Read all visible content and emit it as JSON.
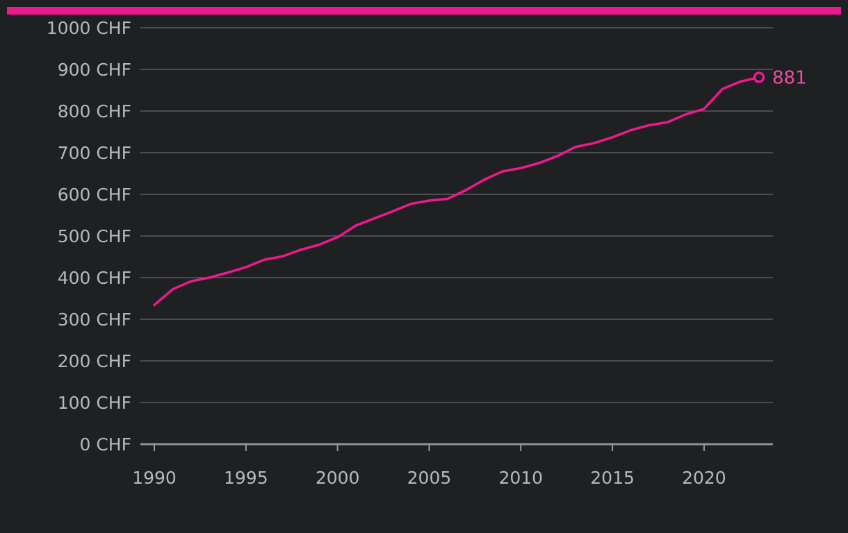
{
  "colors": {
    "background": "#1f2022",
    "accent": "#ed1a8f",
    "end_label": "#f04aa6",
    "grid": "#5b5c5f",
    "axis_text": "#b7b8bb"
  },
  "chart_data": {
    "type": "line",
    "title": "",
    "xlabel": "",
    "ylabel": "",
    "y_unit_suffix": " CHF",
    "ylim": [
      0,
      1000
    ],
    "xlim": [
      1990,
      2023
    ],
    "grid": true,
    "y_ticks": [
      0,
      100,
      200,
      300,
      400,
      500,
      600,
      700,
      800,
      900,
      1000
    ],
    "y_tick_labels": [
      "0 CHF",
      "100 CHF",
      "200 CHF",
      "300 CHF",
      "400 CHF",
      "500 CHF",
      "600 CHF",
      "700 CHF",
      "800 CHF",
      "900 CHF",
      "1000 CHF"
    ],
    "x_ticks": [
      1990,
      1995,
      2000,
      2005,
      2010,
      2015,
      2020
    ],
    "x_tick_labels": [
      "1990",
      "1995",
      "2000",
      "2005",
      "2010",
      "2015",
      "2020"
    ],
    "x": [
      1990,
      1991,
      1992,
      1993,
      1994,
      1995,
      1996,
      1997,
      1998,
      1999,
      2000,
      2001,
      2002,
      2003,
      2004,
      2005,
      2006,
      2007,
      2008,
      2009,
      2010,
      2011,
      2012,
      2013,
      2014,
      2015,
      2016,
      2017,
      2018,
      2019,
      2020,
      2021,
      2022,
      2023
    ],
    "series": [
      {
        "values": [
          334,
          372,
          391,
          400,
          412,
          425,
          443,
          451,
          467,
          479,
          497,
          525,
          542,
          559,
          577,
          585,
          589,
          610,
          635,
          655,
          663,
          675,
          692,
          714,
          723,
          737,
          754,
          766,
          773,
          792,
          805,
          853,
          871,
          881
        ]
      }
    ],
    "end_label": "881"
  }
}
